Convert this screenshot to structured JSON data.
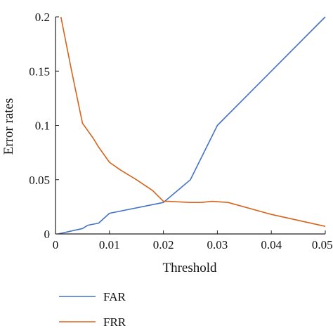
{
  "chart_data": {
    "type": "line",
    "title": "",
    "xlabel": "Threshold",
    "ylabel": "Error rates",
    "xlim": [
      0,
      0.05
    ],
    "ylim": [
      0,
      0.2
    ],
    "xticks": [
      0,
      0.01,
      0.02,
      0.03,
      0.04,
      0.05
    ],
    "xtick_labels": [
      "0",
      "0.01",
      "0.02",
      "0.03",
      "0.04",
      "0.050"
    ],
    "yticks": [
      0,
      0.05,
      0.1,
      0.15,
      0.2
    ],
    "ytick_labels": [
      "0",
      "0.05",
      "0.1",
      "0.15",
      "0.2"
    ],
    "grid": false,
    "legend_position": "below-left",
    "series": [
      {
        "name": "FAR",
        "color": "#4472C4",
        "x": [
          0.0005,
          0.005,
          0.006,
          0.007,
          0.008,
          0.01,
          0.02,
          0.025,
          0.03,
          0.05
        ],
        "y": [
          0.0,
          0.005,
          0.008,
          0.009,
          0.01,
          0.019,
          0.029,
          0.05,
          0.1,
          0.2
        ]
      },
      {
        "name": "FRR",
        "color": "#D5641C",
        "x": [
          0.001,
          0.003,
          0.005,
          0.007,
          0.008,
          0.01,
          0.012,
          0.015,
          0.018,
          0.02,
          0.021,
          0.025,
          0.027,
          0.029,
          0.032,
          0.04,
          0.05
        ],
        "y": [
          0.2,
          0.15,
          0.102,
          0.088,
          0.08,
          0.066,
          0.059,
          0.05,
          0.04,
          0.03,
          0.03,
          0.029,
          0.029,
          0.03,
          0.029,
          0.018,
          0.007
        ]
      }
    ]
  }
}
